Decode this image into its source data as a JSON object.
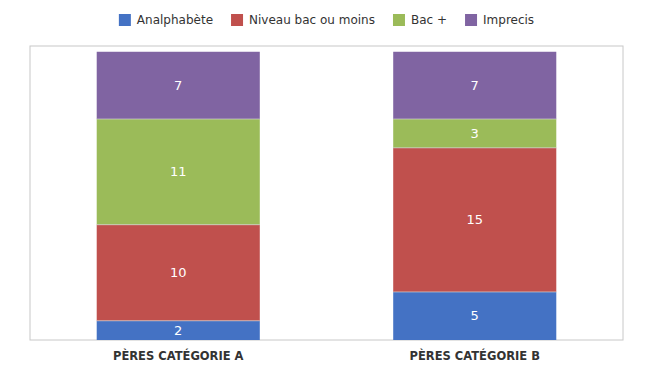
{
  "chart_data": {
    "type": "bar",
    "stacked": true,
    "data_labels": true,
    "tick_labels": "x",
    "legend": "top",
    "categories": [
      "PÈRES CATÉGORIE A",
      "PÈRES CATÉGORIE B"
    ],
    "series": [
      {
        "name": "Analphabète",
        "color": "#4472C4",
        "values": [
          2,
          5
        ]
      },
      {
        "name": "Niveau bac ou moins",
        "color": "#C0504D",
        "values": [
          10,
          15
        ]
      },
      {
        "name": "Bac +",
        "color": "#9BBB59",
        "values": [
          11,
          3
        ]
      },
      {
        "name": "Imprecis",
        "color": "#8064A2",
        "values": [
          7,
          7
        ]
      }
    ],
    "ylim": [
      0,
      30.6
    ]
  }
}
